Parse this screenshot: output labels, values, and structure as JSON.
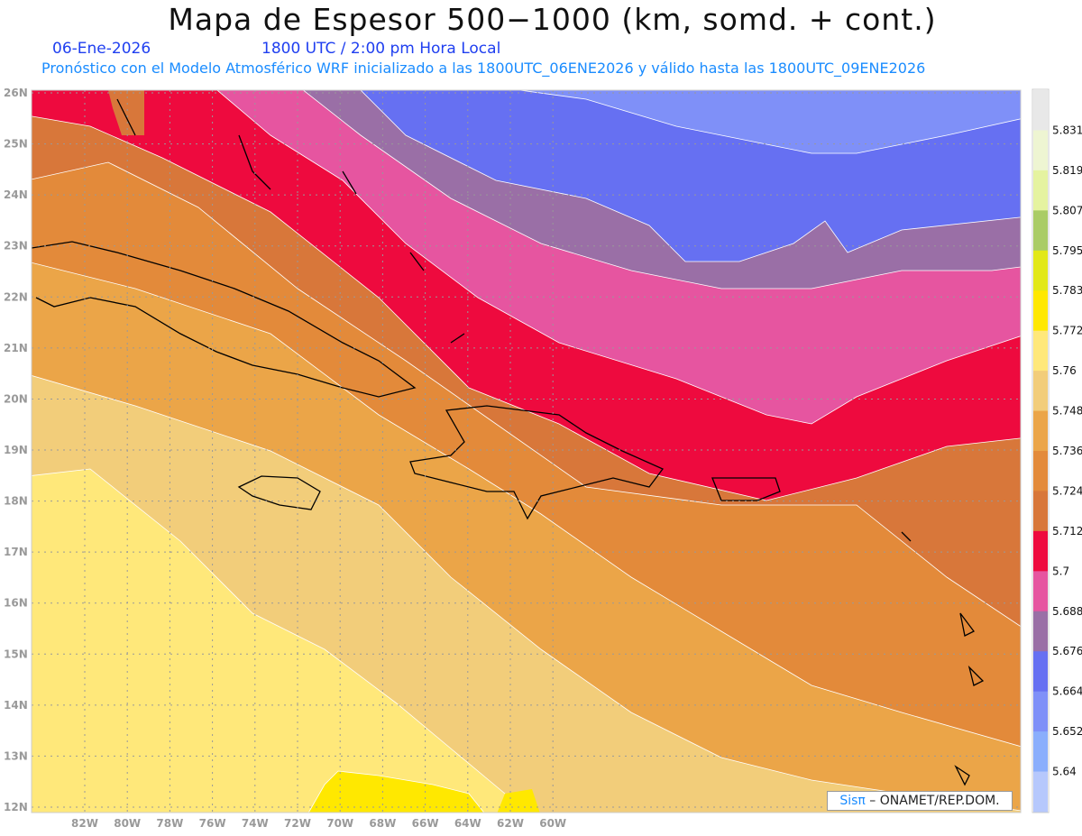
{
  "title": "Mapa de Espesor 500−1000 (km, somd. + cont.)",
  "date": "06-Ene-2026",
  "time": "1800 UTC / 2:00 pm Hora Local",
  "subtitle": "Pronóstico con el Modelo Atmosférico WRF inicializado a las 1800UTC_06ENE2026 y válido hasta las  1800UTC_09ENE2026",
  "credit": {
    "logo": "Sisπ",
    "text": " – ONAMET/REP.DOM."
  },
  "lat_labels": [
    "12N",
    "13N",
    "14N",
    "15N",
    "16N",
    "17N",
    "18N",
    "19N",
    "20N",
    "21N",
    "22N",
    "23N",
    "24N",
    "25N",
    "26N"
  ],
  "lon_labels": [
    "82W",
    "80W",
    "78W",
    "76W",
    "74W",
    "72W",
    "70W",
    "68W",
    "66W",
    "64W",
    "62W",
    "60W"
  ],
  "colorbar": {
    "levels": [
      "5.831",
      "5.819",
      "5.807",
      "5.795",
      "5.783",
      "5.772",
      "5.76",
      "5.748",
      "5.736",
      "5.724",
      "5.712",
      "5.7",
      "5.688",
      "5.676",
      "5.664",
      "5.652",
      "5.64"
    ],
    "colors": [
      "#e8e8e8",
      "#eef5d2",
      "#e5f3a0",
      "#aacc66",
      "#e2e818",
      "#ffe800",
      "#ffe87a",
      "#f2cd7a",
      "#eba548",
      "#e38a3a",
      "#d8773a",
      "#ee0a3e",
      "#e655a0",
      "#9a6fa6",
      "#6670f2",
      "#7f90f8",
      "#8aaefc",
      "#b6c8fc"
    ]
  }
}
